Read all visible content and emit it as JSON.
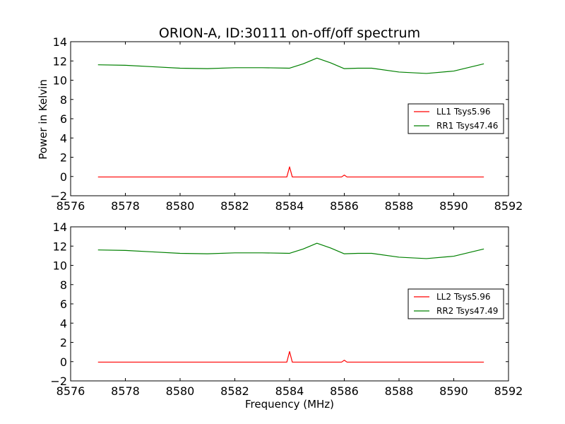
{
  "figure": {
    "title": "ORION-A, ID:30111 on-off/off spectrum",
    "xlabel": "Frequency (MHz)",
    "ylabel": "Power in Kelvin"
  },
  "chart_data": [
    {
      "type": "line",
      "xlim": [
        8576,
        8592
      ],
      "ylim": [
        -2,
        14
      ],
      "xticks": [
        8576,
        8578,
        8580,
        8582,
        8584,
        8586,
        8588,
        8590,
        8592
      ],
      "yticks": [
        -2,
        0,
        2,
        4,
        6,
        8,
        10,
        12,
        14
      ],
      "grid": false,
      "legend_position": "right",
      "series": [
        {
          "name": "LL1 Tsys5.96",
          "color": "#ff0000",
          "x": [
            8577,
            8578,
            8579,
            8580,
            8581,
            8582,
            8583,
            8583.9,
            8584,
            8584.1,
            8585,
            8585.9,
            8586,
            8586.1,
            8587,
            8588,
            8589,
            8590,
            8591.1
          ],
          "y": [
            -0.05,
            -0.05,
            -0.05,
            -0.05,
            -0.05,
            -0.05,
            -0.05,
            -0.05,
            1.0,
            -0.05,
            -0.05,
            -0.05,
            0.15,
            -0.05,
            -0.05,
            -0.05,
            -0.05,
            -0.05,
            -0.05
          ]
        },
        {
          "name": "RR1 Tsys47.46",
          "color": "#008000",
          "x": [
            8577,
            8578,
            8579,
            8580,
            8581,
            8582,
            8583,
            8584,
            8584.5,
            8585,
            8585.5,
            8586,
            8586.5,
            8587,
            8588,
            8589,
            8590,
            8591.1
          ],
          "y": [
            11.6,
            11.55,
            11.4,
            11.25,
            11.2,
            11.3,
            11.3,
            11.25,
            11.7,
            12.3,
            11.8,
            11.2,
            11.25,
            11.25,
            10.85,
            10.7,
            10.95,
            11.7
          ]
        }
      ]
    },
    {
      "type": "line",
      "xlim": [
        8576,
        8592
      ],
      "ylim": [
        -2,
        14
      ],
      "xticks": [
        8576,
        8578,
        8580,
        8582,
        8584,
        8586,
        8588,
        8590,
        8592
      ],
      "yticks": [
        -2,
        0,
        2,
        4,
        6,
        8,
        10,
        12,
        14
      ],
      "grid": false,
      "legend_position": "right",
      "series": [
        {
          "name": "LL2 Tsys5.96",
          "color": "#ff0000",
          "x": [
            8577,
            8578,
            8579,
            8580,
            8581,
            8582,
            8583,
            8583.9,
            8584,
            8584.1,
            8585,
            8585.9,
            8586,
            8586.1,
            8587,
            8588,
            8589,
            8590,
            8591.1
          ],
          "y": [
            -0.05,
            -0.05,
            -0.05,
            -0.05,
            -0.05,
            -0.05,
            -0.05,
            -0.05,
            1.05,
            -0.05,
            -0.05,
            -0.05,
            0.15,
            -0.05,
            -0.05,
            -0.05,
            -0.05,
            -0.05,
            -0.05
          ]
        },
        {
          "name": "RR2 Tsys47.49",
          "color": "#008000",
          "x": [
            8577,
            8578,
            8579,
            8580,
            8581,
            8582,
            8583,
            8584,
            8584.5,
            8585,
            8585.5,
            8586,
            8586.5,
            8587,
            8588,
            8589,
            8590,
            8591.1
          ],
          "y": [
            11.6,
            11.55,
            11.4,
            11.25,
            11.2,
            11.3,
            11.3,
            11.25,
            11.7,
            12.3,
            11.8,
            11.2,
            11.25,
            11.25,
            10.85,
            10.7,
            10.95,
            11.7
          ]
        }
      ]
    }
  ]
}
